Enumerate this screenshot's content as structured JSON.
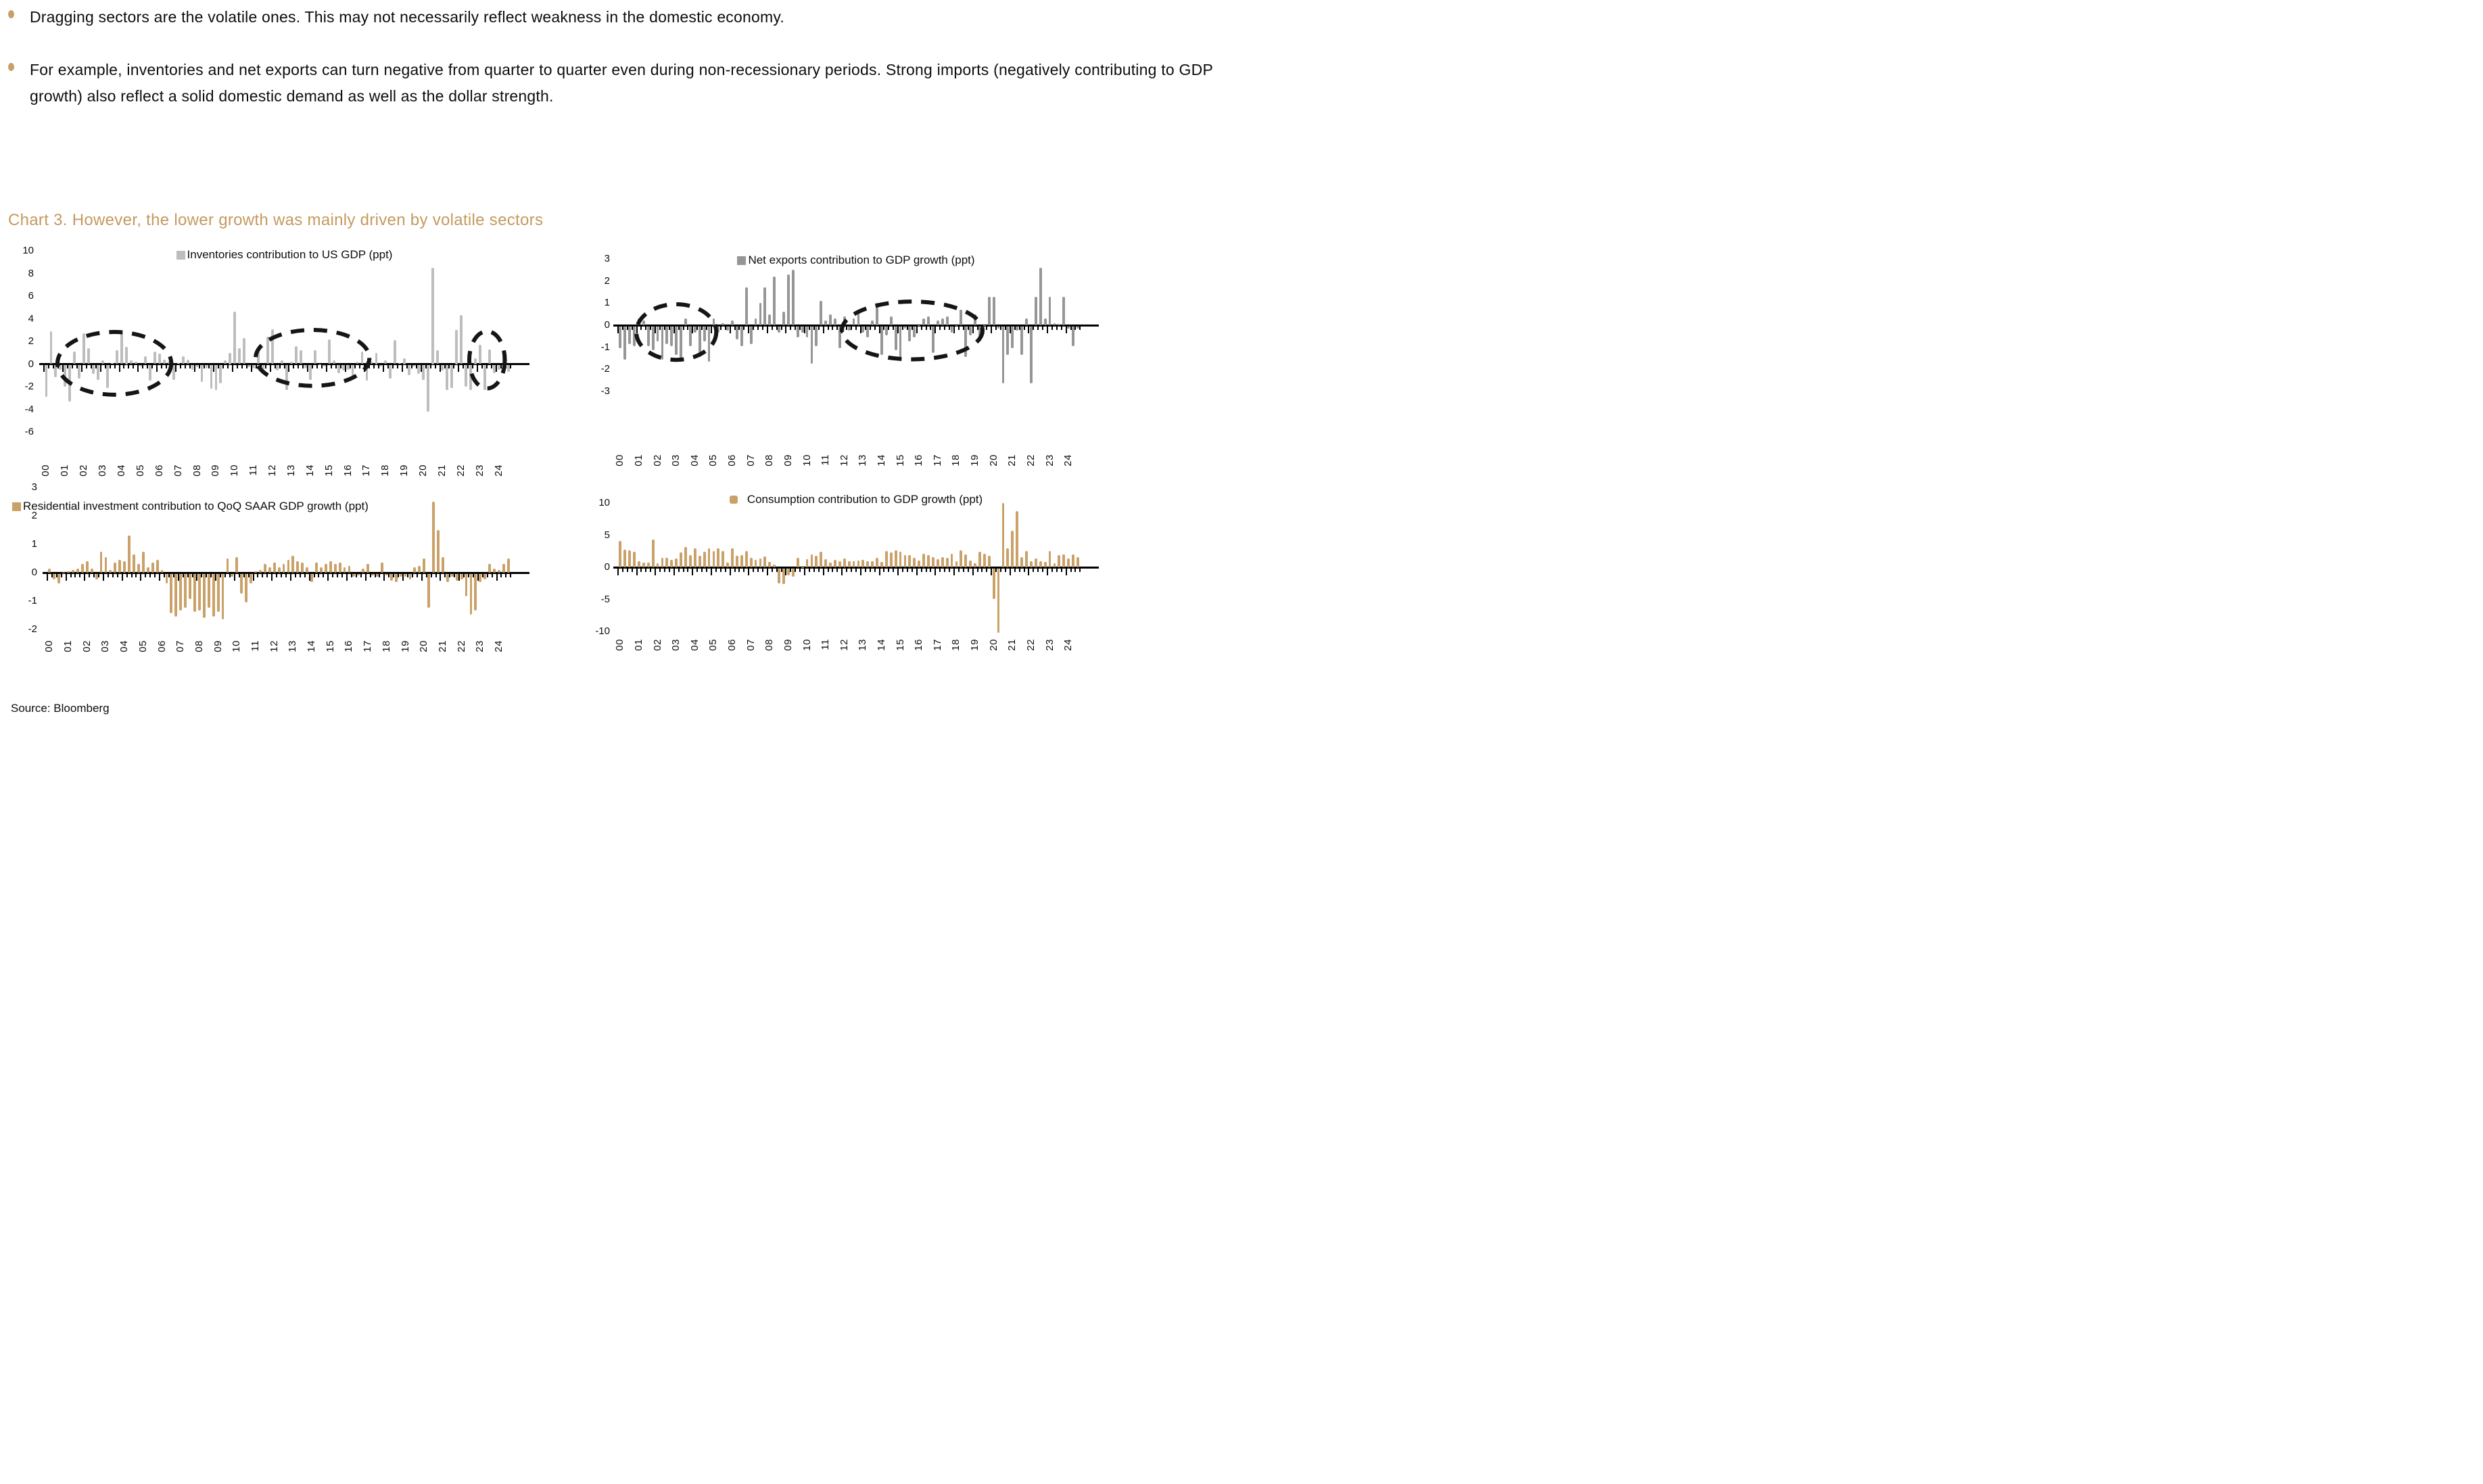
{
  "bullets": [
    {
      "text": "Dragging sectors are the volatile ones. This may not necessarily reflect weakness in the domestic economy."
    },
    {
      "text": "For example, inventories and net exports can turn negative from quarter to quarter even during non-recessionary periods. Strong imports (negatively contributing to GDP growth) also reflect a solid domestic demand as well as the dollar strength."
    }
  ],
  "title": "Chart 3. However, the lower growth was mainly driven by volatile sectors",
  "source": "Source: Bloomberg",
  "colors": {
    "title_tan": "#C49A5F",
    "bullet_dot_tan": "#C9A063",
    "inventories_gray": "#BDBDBD",
    "net_exports_gray": "#969696",
    "tan_bars": "#C9A169",
    "axis_black": "#000000",
    "ellipse_black": "#151515"
  },
  "x_year_labels": [
    "00",
    "01",
    "02",
    "03",
    "04",
    "05",
    "06",
    "07",
    "08",
    "09",
    "10",
    "11",
    "12",
    "13",
    "14",
    "15",
    "16",
    "17",
    "18",
    "19",
    "20",
    "21",
    "22",
    "23",
    "24"
  ],
  "chart_data": [
    {
      "id": "inventories",
      "type": "bar",
      "legend": "Inventories contribution to US GDP (ppt)",
      "bar_color": "#BDBDBD",
      "frequency": "quarterly",
      "x_start": "2000Q1",
      "x_end": "2024Q3",
      "ylim": [
        -6,
        10
      ],
      "yticks": [
        10,
        8,
        6,
        4,
        2,
        0,
        -2,
        -4,
        -6
      ],
      "grid": false,
      "legend_position": "top-center",
      "values": [
        -2.8,
        2.9,
        -1.1,
        -0.4,
        -1.9,
        -3.2,
        1.1,
        -1.2,
        2.7,
        1.4,
        -0.8,
        -1.3,
        0.3,
        -2.0,
        0.1,
        1.2,
        2.9,
        1.5,
        0.3,
        0.2,
        -0.1,
        0.7,
        -1.4,
        1.1,
        0.9,
        0.4,
        0.2,
        -1.3,
        0.1,
        0.7,
        0.4,
        -0.4,
        -0.2,
        -1.5,
        -0.3,
        -2.1,
        -2.2,
        -1.6,
        0.3,
        1.0,
        4.6,
        1.4,
        2.3,
        -0.2,
        -0.3,
        1.1,
        -0.4,
        2.4,
        3.1,
        -0.5,
        0.3,
        -2.2,
        0.2,
        1.6,
        1.2,
        -0.3,
        -1.3,
        1.2,
        0.0,
        -0.1,
        2.2,
        0.3,
        -0.7,
        -0.5,
        -0.4,
        -1.2,
        0.2,
        1.1,
        -1.4,
        0.2,
        1.0,
        -0.1,
        0.3,
        -1.2,
        2.1,
        0.1,
        0.5,
        -0.9,
        -0.1,
        -0.8,
        -1.3,
        -4.1,
        8.5,
        1.2,
        -0.5,
        -2.2,
        -2.0,
        3.0,
        4.3,
        -1.9,
        -2.2,
        0.5,
        1.7,
        -2.2,
        1.3,
        -0.7,
        -0.4,
        1.2,
        -0.6
      ],
      "annotations": [
        {
          "kind": "dashed-ellipse",
          "cq": 14.5,
          "cv": 0.05,
          "rq": 12.5,
          "rv": 2.95
        },
        {
          "kind": "dashed-ellipse",
          "cq": 56.5,
          "cv": 0.55,
          "rq": 12.5,
          "rv": 2.65
        },
        {
          "kind": "dashed-ellipse",
          "cq": 93.5,
          "cv": 0.4,
          "rq": 4.2,
          "rv": 2.7
        }
      ]
    },
    {
      "id": "net-exports",
      "type": "bar",
      "legend": "Net exports contribution to GDP growth (ppt)",
      "bar_color": "#969696",
      "frequency": "quarterly",
      "x_start": "2000Q1",
      "x_end": "2024Q3",
      "ylim": [
        -3,
        3
      ],
      "yticks": [
        3,
        2,
        1,
        0,
        -1,
        -2,
        -3
      ],
      "grid": false,
      "legend_position": "top-center",
      "values": [
        -1.0,
        -1.5,
        -0.8,
        -0.9,
        0.3,
        0.2,
        -0.9,
        -1.1,
        -0.7,
        -1.5,
        -0.8,
        -0.9,
        -1.3,
        -1.6,
        0.3,
        -0.9,
        -0.3,
        -1.4,
        -0.7,
        -1.6,
        0.3,
        -0.3,
        0.1,
        -0.2,
        0.2,
        -0.6,
        -0.9,
        1.7,
        -0.8,
        0.3,
        1.0,
        1.7,
        0.5,
        2.2,
        -0.3,
        0.6,
        2.3,
        2.5,
        -0.5,
        -0.3,
        -0.5,
        -1.7,
        -0.9,
        1.1,
        0.2,
        0.5,
        0.3,
        -1.0,
        0.4,
        -0.2,
        0.3,
        0.7,
        -0.3,
        -0.5,
        0.2,
        1.0,
        -1.3,
        -0.4,
        0.4,
        -1.1,
        -1.4,
        -0.1,
        -0.7,
        -0.5,
        0.0,
        0.3,
        0.4,
        -1.2,
        0.2,
        0.3,
        0.4,
        -0.3,
        0.0,
        0.7,
        -1.4,
        -0.4,
        0.5,
        -0.7,
        0.0,
        1.3,
        1.3,
        -0.1,
        -2.6,
        -1.3,
        -1.0,
        -0.2,
        -1.3,
        0.3,
        -2.6,
        1.3,
        2.6,
        0.3,
        1.3,
        0.1,
        0.05,
        1.3,
        -0.1,
        -0.9,
        -0.1
      ],
      "annotations": [
        {
          "kind": "dashed-ellipse",
          "cq": 12.0,
          "cv": -0.3,
          "rq": 9.0,
          "rv": 1.35
        },
        {
          "kind": "dashed-ellipse",
          "cq": 62.5,
          "cv": -0.25,
          "rq": 15.5,
          "rv": 1.4
        }
      ]
    },
    {
      "id": "residential",
      "type": "bar",
      "legend": "Residential investment contribution to QoQ SAAR GDP growth (ppt)",
      "bar_color": "#C9A169",
      "frequency": "quarterly",
      "x_start": "2000Q1",
      "x_end": "2024Q3",
      "ylim": [
        -2,
        3
      ],
      "yticks": [
        3,
        2,
        1,
        0,
        -1,
        -2
      ],
      "grid": false,
      "legend_position": "top-left",
      "values": [
        0.15,
        -0.2,
        -0.35,
        0.0,
        0.05,
        0.1,
        0.15,
        0.3,
        0.4,
        0.15,
        -0.2,
        0.75,
        0.55,
        0.1,
        0.35,
        0.45,
        0.4,
        1.3,
        0.65,
        0.3,
        0.75,
        0.2,
        0.35,
        0.45,
        0.1,
        -0.35,
        -1.4,
        -1.5,
        -1.3,
        -1.2,
        -0.9,
        -1.35,
        -1.3,
        -1.55,
        -1.2,
        -1.5,
        -1.35,
        -1.6,
        0.5,
        -0.1,
        0.55,
        -0.7,
        -1.0,
        -0.35,
        0.05,
        0.1,
        0.3,
        0.2,
        0.35,
        0.2,
        0.3,
        0.45,
        0.6,
        0.4,
        0.35,
        0.2,
        -0.3,
        0.35,
        0.2,
        0.3,
        0.4,
        0.3,
        0.35,
        0.2,
        0.25,
        -0.1,
        -0.05,
        0.15,
        0.3,
        -0.05,
        -0.1,
        0.35,
        -0.05,
        -0.25,
        -0.3,
        -0.1,
        -0.1,
        -0.2,
        0.2,
        0.25,
        0.5,
        -1.2,
        2.5,
        1.5,
        0.55,
        -0.3,
        -0.1,
        -0.25,
        -0.2,
        -0.8,
        -1.45,
        -1.3,
        -0.3,
        -0.2,
        0.3,
        0.15,
        0.1,
        0.3,
        0.5
      ],
      "annotations": []
    },
    {
      "id": "consumption",
      "type": "bar",
      "legend": "Consumption contribution to GDP growth (ppt)",
      "bar_color": "#C9A169",
      "frequency": "quarterly",
      "x_start": "2000Q1",
      "x_end": "2024Q3",
      "ylim": [
        -10,
        10
      ],
      "yticks": [
        10,
        5,
        0,
        -5,
        -10
      ],
      "grid": false,
      "legend_position": "top-center",
      "clipped_note": "2020Q2 and 2020Q3 bars clipped at axis limits",
      "values": [
        4.1,
        2.7,
        2.6,
        2.4,
        1.0,
        0.7,
        0.7,
        4.3,
        0.6,
        1.5,
        1.5,
        1.2,
        1.4,
        2.3,
        3.2,
        1.9,
        2.9,
        1.8,
        2.4,
        2.9,
        2.5,
        2.9,
        2.5,
        0.7,
        3.0,
        1.8,
        1.9,
        2.5,
        1.5,
        1.2,
        1.4,
        1.7,
        0.8,
        0.4,
        -2.4,
        -2.5,
        -1.1,
        -1.3,
        1.5,
        0.0,
        1.3,
        2.0,
        1.8,
        2.4,
        1.3,
        0.7,
        1.2,
        0.9,
        1.4,
        0.9,
        1.0,
        1.1,
        1.2,
        0.9,
        1.0,
        1.5,
        0.8,
        2.5,
        2.3,
        2.6,
        2.4,
        1.9,
        1.9,
        1.5,
        1.1,
        2.1,
        1.9,
        1.6,
        1.3,
        1.6,
        1.5,
        2.1,
        0.9,
        2.6,
        2.0,
        1.1,
        0.6,
        2.4,
        2.1,
        1.8,
        -4.8,
        -10.0,
        10.0,
        2.9,
        5.7,
        8.7,
        1.6,
        2.5,
        0.9,
        1.4,
        0.9,
        0.8,
        2.5,
        0.6,
        1.9,
        2.0,
        1.4,
        2.0,
        1.6
      ],
      "annotations": []
    }
  ]
}
